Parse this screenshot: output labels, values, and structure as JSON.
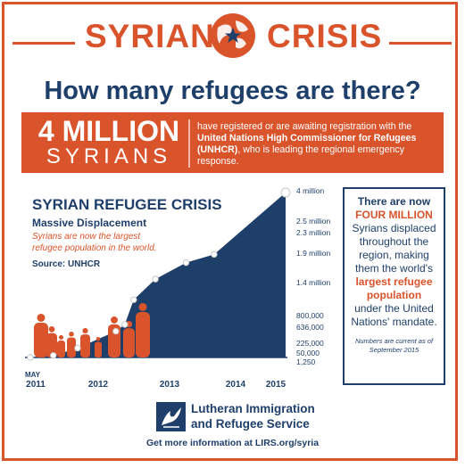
{
  "header": {
    "word_left": "SYRIAN",
    "word_right": "CRISIS",
    "globe_icon": "globe-icon"
  },
  "question": "How many refugees are there?",
  "banner": {
    "number": "4 MILLION",
    "word": "SYRIANS",
    "text_1": "have registered or are awaiting registration with the ",
    "text_bold": "United Nations High Commissioner for Refugees (UNHCR)",
    "text_2": ", who is leading the regional emergency response."
  },
  "chart_data": {
    "type": "area",
    "title": "SYRIAN REFUGEE CRISIS",
    "subtitle": "Massive Displacement",
    "annotation": "Syrians are now the largest refugee population in the world.",
    "source": "Source: UNHCR",
    "x_ticks": [
      "2011",
      "2012",
      "2013",
      "2014",
      "2015"
    ],
    "x_start_label": "MAY",
    "points": [
      {
        "label": "1,250",
        "value": 1250,
        "t": 0.0
      },
      {
        "label": "50,000",
        "value": 50000,
        "t": 0.09
      },
      {
        "label": "225,000",
        "value": 225000,
        "t": 0.185
      },
      {
        "label": "636,000",
        "value": 636000,
        "t": 0.335
      },
      {
        "label": "800,000",
        "value": 800000,
        "t": 0.37
      },
      {
        "label": "1.4 million",
        "value": 1400000,
        "t": 0.405
      },
      {
        "label": "1.9 million",
        "value": 1900000,
        "t": 0.49
      },
      {
        "label": "2.3 million",
        "value": 2300000,
        "t": 0.61
      },
      {
        "label": "2.5 million",
        "value": 2500000,
        "t": 0.72
      },
      {
        "label": "4 million",
        "value": 4000000,
        "t": 1.0
      }
    ],
    "colors": {
      "area": "#1f3f6b",
      "marker": "#ffffff",
      "figures": "#d9532b"
    }
  },
  "side_box": {
    "line_1": "There are now",
    "line_2": "FOUR MILLION",
    "line_3": "Syrians displaced throughout the region, making them the world's",
    "line_4": "largest refugee population",
    "line_5": "under the United Nations' mandate.",
    "footnote": "Numbers are current as of September 2015"
  },
  "footer": {
    "org_line_1": "Lutheran Immigration",
    "org_line_2": "and Refugee Service",
    "info": "Get more information at LIRS.org/syria",
    "logo_icon": "lirs-logo-icon"
  },
  "colors": {
    "accent": "#d9532b",
    "navy": "#1f3f6b"
  }
}
